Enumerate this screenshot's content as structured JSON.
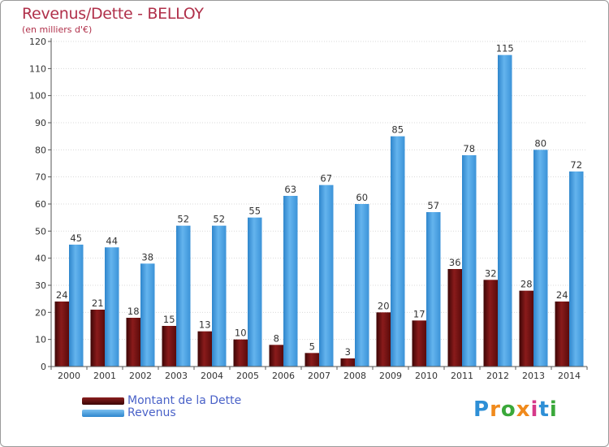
{
  "chart_data": {
    "type": "bar",
    "title": "Revenus/Dette - BELLOY",
    "subtitle": "(en milliers d'€)",
    "categories": [
      "2000",
      "2001",
      "2002",
      "2003",
      "2004",
      "2005",
      "2006",
      "2007",
      "2008",
      "2009",
      "2010",
      "2011",
      "2012",
      "2013",
      "2014"
    ],
    "series": [
      {
        "name": "Montant de la Dette",
        "color": "#7a1515",
        "values": [
          24,
          21,
          18,
          15,
          13,
          10,
          8,
          5,
          3,
          20,
          17,
          36,
          32,
          28,
          24
        ]
      },
      {
        "name": "Revenus",
        "color": "#4ea3e4",
        "values": [
          45,
          44,
          38,
          52,
          52,
          55,
          63,
          67,
          60,
          85,
          57,
          78,
          115,
          80,
          72
        ]
      }
    ],
    "ylim": [
      0,
      120
    ],
    "yticks": [
      0,
      10,
      20,
      30,
      40,
      50,
      60,
      70,
      80,
      90,
      100,
      110,
      120
    ],
    "grid": true,
    "legend_position": "bottom-left"
  },
  "logo": {
    "letters": [
      "P",
      "r",
      "o",
      "x",
      "i",
      "t",
      "i"
    ],
    "colors": [
      "#2e8fd6",
      "#f08a1c",
      "#3aa83a",
      "#f08a1c",
      "#d63a8a",
      "#2e8fd6",
      "#3aa83a"
    ]
  }
}
